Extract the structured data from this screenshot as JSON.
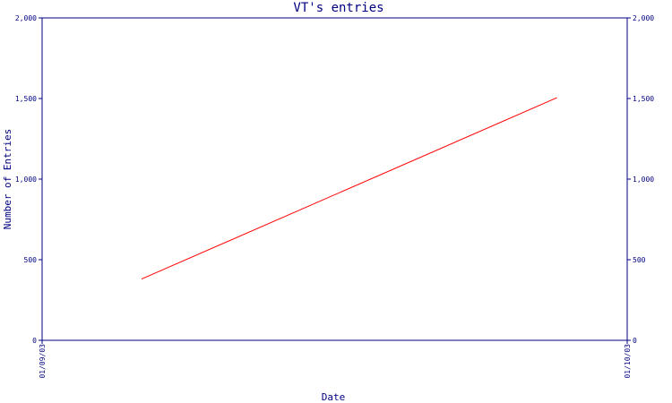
{
  "chart_data": {
    "type": "line",
    "title": "VT's entries",
    "xlabel": "Date",
    "ylabel": "Number of Entries",
    "x_tick_labels": [
      "01/09/03",
      "01/10/03"
    ],
    "xlim": [
      0,
      1
    ],
    "y_ticks": [
      0,
      500,
      1000,
      1500,
      2000
    ],
    "y_tick_labels": [
      "0",
      "500",
      "1,000",
      "1,500",
      "2,000"
    ],
    "ylim": [
      0,
      2000
    ],
    "grid": false,
    "series": [
      {
        "color": "#ff0000",
        "points": [
          {
            "x": 0.17,
            "y": 380
          },
          {
            "x": 0.88,
            "y": 1505
          }
        ]
      }
    ],
    "colors": {
      "axis": "#000080",
      "background": "#ffffff"
    }
  }
}
